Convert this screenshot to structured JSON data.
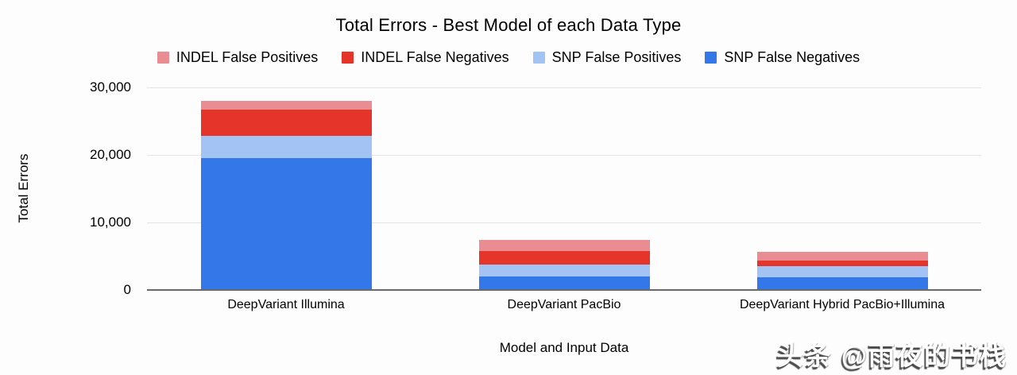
{
  "figure": {
    "watermark": "头条 @雨夜的书栈"
  },
  "chart_data": {
    "type": "bar",
    "stacked": true,
    "title": "Total Errors - Best Model of each Data Type",
    "xlabel": "Model and Input Data",
    "ylabel": "Total Errors",
    "ylim": [
      0,
      30000
    ],
    "grid": true,
    "legend_position": "top",
    "ytick_labels": [
      "0",
      "10,000",
      "20,000",
      "30,000"
    ],
    "categories": [
      "DeepVariant Illumina",
      "DeepVariant PacBio",
      "DeepVariant Hybrid PacBio+Illumina"
    ],
    "series": [
      {
        "name": "INDEL False Positives",
        "color": "#ea8d92",
        "values": [
          1300,
          1700,
          1300
        ]
      },
      {
        "name": "INDEL False Negatives",
        "color": "#e5352b",
        "values": [
          3900,
          2050,
          850
        ]
      },
      {
        "name": "SNP False Positives",
        "color": "#a4c3f5",
        "values": [
          3300,
          1800,
          1600
        ]
      },
      {
        "name": "SNP False Negatives",
        "color": "#3377e8",
        "values": [
          19700,
          2100,
          1950
        ]
      }
    ],
    "totals": [
      28200,
      7650,
      5700
    ],
    "axis_colors": {
      "baseline": "#6a6a6a",
      "gridline": "#e4e4e4",
      "text": "#000000"
    }
  }
}
